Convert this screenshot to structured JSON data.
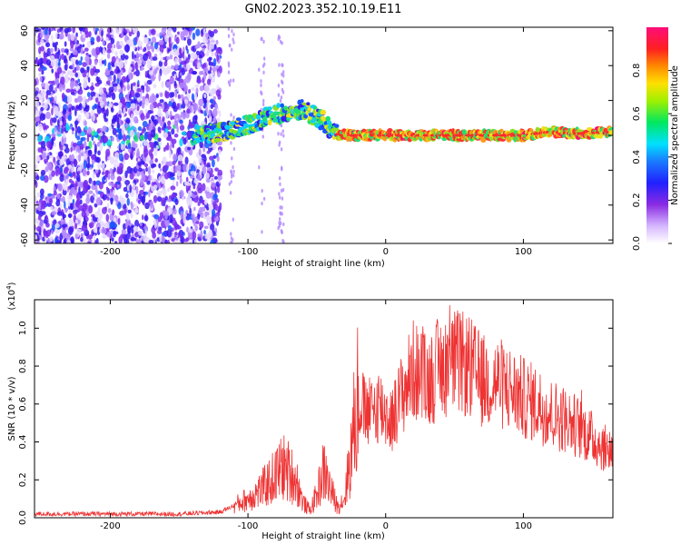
{
  "title": "GN02.2023.352.10.19.E11",
  "colors": {
    "snr_line": "#ee3333",
    "colormap": [
      "#e6d9ff",
      "#b387ff",
      "#7a2cf0",
      "#3a18f0",
      "#1a55ff",
      "#10d0f0",
      "#20e070",
      "#8ee020",
      "#f0e020",
      "#ff9818",
      "#ff3030",
      "#f01670"
    ]
  },
  "chart_data": [
    {
      "type": "heatmap",
      "xlabel": "Height of straight line (km)",
      "ylabel": "Frequency (Hz)",
      "xlim": [
        -255,
        165
      ],
      "ylim": [
        -62,
        62
      ],
      "xticks": [
        -200,
        -100,
        0,
        100
      ],
      "yticks": [
        -60,
        -40,
        -20,
        0,
        20,
        40,
        60
      ],
      "grid": false,
      "description_note": "",
      "colorbar": {
        "label": "Normalized spectral amplitude",
        "range": [
          0.0,
          1.0
        ],
        "ticks": [
          "0.0",
          "0.2",
          "0.4",
          "0.6",
          "0.8"
        ]
      },
      "ridge": {
        "x": [
          -140,
          -120,
          -100,
          -80,
          -60,
          -45,
          -38,
          -30,
          0,
          50,
          100,
          120,
          140,
          165
        ],
        "y": [
          0,
          2,
          6,
          12,
          15,
          8,
          1,
          0,
          0,
          0,
          0,
          2,
          1,
          2
        ]
      }
    },
    {
      "type": "line",
      "xlabel": "Height of straight line (km)",
      "ylabel": "SNR (10 * v/v)",
      "y_multiplier": "(x10",
      "y_multiplier_exp": "4",
      "y_multiplier_close": ")",
      "xlim": [
        -255,
        165
      ],
      "ylim": [
        0,
        1.15
      ],
      "xticks": [
        -200,
        -100,
        0,
        100
      ],
      "yticks": [
        "0.0",
        "0.2",
        "0.4",
        "0.6",
        "0.8",
        "1.0"
      ],
      "grid": false,
      "series": [
        {
          "x": [
            -255,
            -200,
            -150,
            -120,
            -100,
            -90,
            -80,
            -75,
            -70,
            -65,
            -60,
            -55,
            -50,
            -45,
            -40,
            -35,
            -30,
            -25,
            -20,
            -15,
            -10,
            -5,
            0,
            5,
            10,
            20,
            30,
            40,
            50,
            60,
            70,
            80,
            90,
            100,
            110,
            120,
            130,
            140,
            150,
            160,
            165
          ],
          "y": [
            0.02,
            0.02,
            0.02,
            0.03,
            0.1,
            0.15,
            0.22,
            0.27,
            0.24,
            0.2,
            0.08,
            0.04,
            0.12,
            0.25,
            0.15,
            0.06,
            0.1,
            0.35,
            0.65,
            0.55,
            0.55,
            0.6,
            0.55,
            0.52,
            0.62,
            0.78,
            0.72,
            0.8,
            0.82,
            0.8,
            0.72,
            0.72,
            0.68,
            0.63,
            0.6,
            0.55,
            0.52,
            0.48,
            0.42,
            0.36,
            0.36
          ]
        }
      ]
    }
  ]
}
